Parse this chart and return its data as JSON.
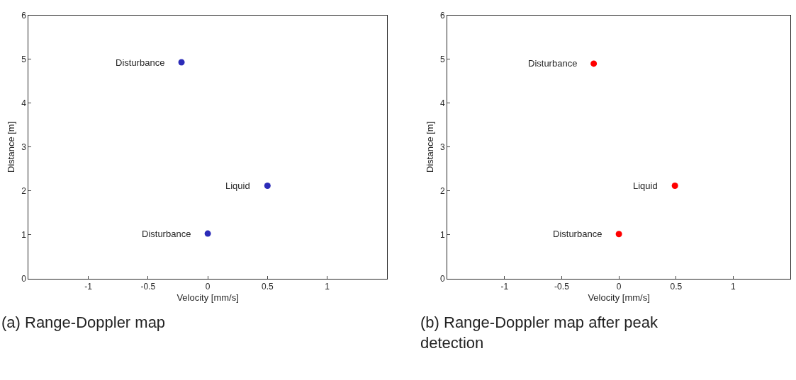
{
  "chart_data": [
    {
      "type": "scatter",
      "title": "(a) Range-Doppler map",
      "xlabel": "Velocity [mm/s]",
      "ylabel": "Distance [m]",
      "xlim": [
        -1.5,
        1.5
      ],
      "ylim": [
        0,
        6
      ],
      "xticks": [
        -1,
        -0.5,
        0,
        0.5,
        1
      ],
      "yticks": [
        0,
        1,
        2,
        3,
        4,
        5,
        6
      ],
      "marker": "circle",
      "grid": false,
      "series": [
        {
          "color": "#2b2bb8",
          "x": [
            -0.22,
            0.5,
            0.0
          ],
          "values": [
            4.93,
            2.12,
            1.03
          ]
        }
      ],
      "annotations": [
        {
          "text": "Disturbance",
          "x": -0.22,
          "y": 4.93
        },
        {
          "text": "Liquid",
          "x": 0.5,
          "y": 2.12
        },
        {
          "text": "Disturbance",
          "x": 0.0,
          "y": 1.03
        }
      ]
    },
    {
      "type": "scatter",
      "title": "(b) Range-Doppler map after peak detection",
      "xlabel": "Velocity [mm/s]",
      "ylabel": "Distance [m]",
      "xlim": [
        -1.5,
        1.5
      ],
      "ylim": [
        0,
        6
      ],
      "xticks": [
        -1,
        -0.5,
        0,
        0.5,
        1
      ],
      "yticks": [
        0,
        1,
        2,
        3,
        4,
        5,
        6
      ],
      "marker": "circle",
      "grid": false,
      "series": [
        {
          "color": "#ff0000",
          "x": [
            -0.22,
            0.49,
            0.0
          ],
          "values": [
            4.9,
            2.12,
            1.02
          ]
        }
      ],
      "annotations": [
        {
          "text": "Disturbance",
          "x": -0.22,
          "y": 4.9
        },
        {
          "text": "Liquid",
          "x": 0.49,
          "y": 2.12
        },
        {
          "text": "Disturbance",
          "x": 0.0,
          "y": 1.02
        }
      ]
    }
  ]
}
